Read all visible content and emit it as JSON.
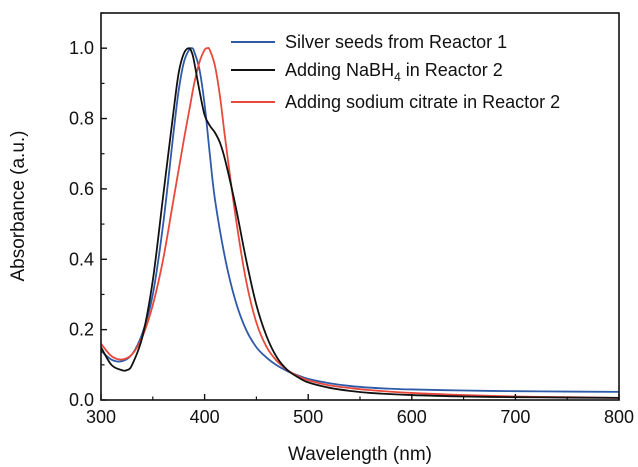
{
  "chart_data": {
    "type": "line",
    "title": "",
    "xlabel": "Wavelength (nm)",
    "ylabel": "Absorbance (a.u.)",
    "xlim": [
      300,
      800
    ],
    "ylim": [
      0.0,
      1.1
    ],
    "x_ticks": [
      300,
      400,
      500,
      600,
      700,
      800
    ],
    "x_tick_labels": [
      "300",
      "400",
      "500",
      "600",
      "700",
      "800"
    ],
    "y_ticks": [
      0.0,
      0.2,
      0.4,
      0.6,
      0.8,
      1.0
    ],
    "y_tick_labels": [
      "0.0",
      "0.2",
      "0.4",
      "0.6",
      "0.8",
      "1.0"
    ],
    "grid": false,
    "legend_position": "top-right",
    "series": [
      {
        "name": "Silver seeds from Reactor 1",
        "label_main": "Silver seeds from Reactor 1",
        "label_sub": "",
        "label_tail": "",
        "color": "#2e5aa8",
        "x": [
          300,
          310,
          320,
          330,
          340,
          350,
          360,
          370,
          375,
          380,
          385,
          388,
          390,
          395,
          400,
          405,
          410,
          420,
          430,
          440,
          450,
          460,
          470,
          480,
          490,
          500,
          520,
          540,
          560,
          580,
          600,
          650,
          700,
          750,
          800
        ],
        "y": [
          0.14,
          0.115,
          0.11,
          0.13,
          0.19,
          0.3,
          0.5,
          0.76,
          0.88,
          0.96,
          0.995,
          1.0,
          0.99,
          0.94,
          0.84,
          0.7,
          0.57,
          0.4,
          0.28,
          0.2,
          0.15,
          0.12,
          0.098,
          0.082,
          0.07,
          0.06,
          0.048,
          0.04,
          0.035,
          0.032,
          0.03,
          0.027,
          0.025,
          0.024,
          0.023
        ]
      },
      {
        "name": "Adding NaBH4 in Reactor 2",
        "label_main": "Adding NaBH",
        "label_sub": "4",
        "label_tail": " in Reactor 2",
        "color": "#111111",
        "x": [
          300,
          310,
          320,
          325,
          330,
          340,
          350,
          360,
          370,
          375,
          380,
          385,
          388,
          390,
          395,
          400,
          405,
          410,
          415,
          420,
          430,
          440,
          450,
          460,
          470,
          480,
          490,
          500,
          520,
          540,
          560,
          600,
          650,
          700,
          750,
          800
        ],
        "y": [
          0.15,
          0.1,
          0.085,
          0.085,
          0.1,
          0.18,
          0.34,
          0.58,
          0.82,
          0.93,
          0.985,
          1.0,
          0.985,
          0.96,
          0.88,
          0.81,
          0.78,
          0.76,
          0.73,
          0.68,
          0.55,
          0.4,
          0.27,
          0.18,
          0.12,
          0.085,
          0.065,
          0.05,
          0.035,
          0.026,
          0.02,
          0.014,
          0.01,
          0.008,
          0.007,
          0.006
        ]
      },
      {
        "name": "Adding sodium citrate in Reactor 2",
        "label_main": "Adding sodium citrate in Reactor 2",
        "label_sub": "",
        "label_tail": "",
        "color": "#e8493c",
        "x": [
          300,
          310,
          320,
          330,
          340,
          350,
          360,
          370,
          380,
          385,
          390,
          395,
          400,
          403,
          405,
          410,
          415,
          420,
          430,
          440,
          450,
          460,
          470,
          480,
          490,
          500,
          520,
          540,
          560,
          600,
          650,
          700,
          750,
          800
        ],
        "y": [
          0.16,
          0.125,
          0.115,
          0.13,
          0.18,
          0.27,
          0.4,
          0.57,
          0.74,
          0.82,
          0.9,
          0.96,
          0.995,
          1.0,
          0.995,
          0.95,
          0.86,
          0.74,
          0.52,
          0.34,
          0.22,
          0.15,
          0.11,
          0.085,
          0.068,
          0.056,
          0.042,
          0.034,
          0.028,
          0.02,
          0.014,
          0.01,
          0.008,
          0.006
        ]
      }
    ]
  }
}
